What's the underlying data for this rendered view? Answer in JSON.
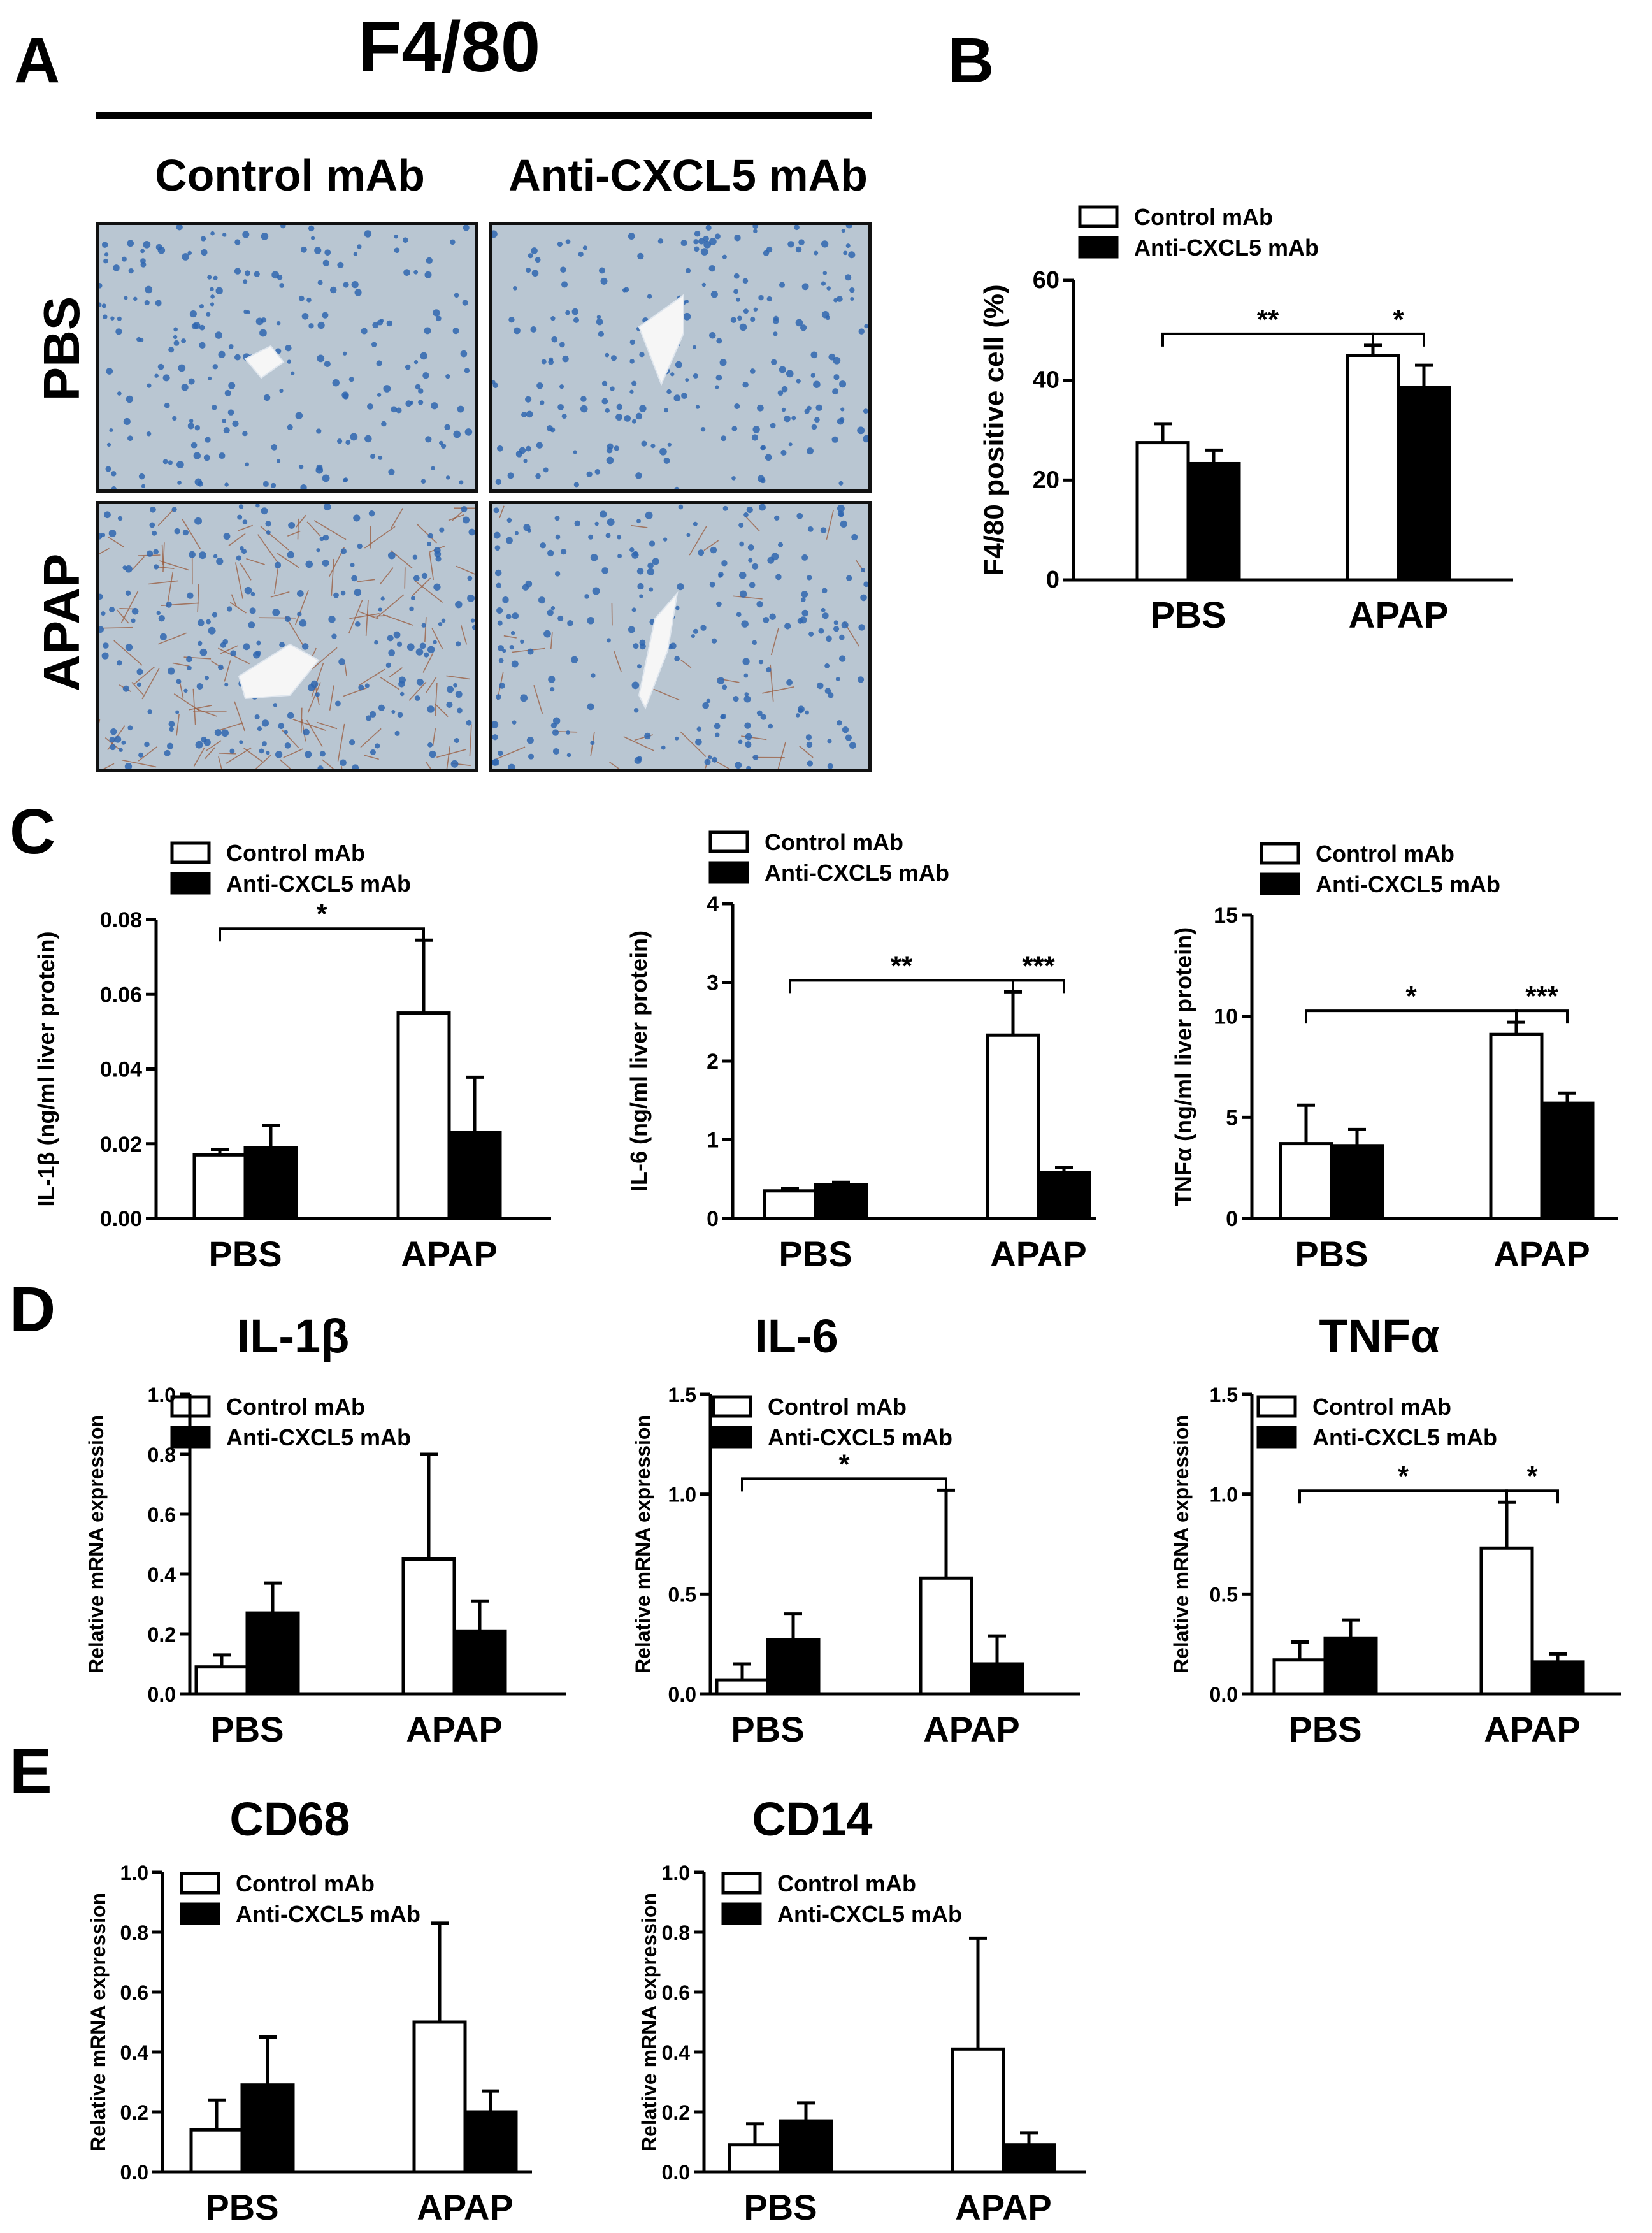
{
  "panel_a": {
    "letter": "A",
    "title": "F4/80",
    "columns": [
      "Control mAb",
      "Anti-CXCL5 mAb"
    ],
    "rows": [
      "PBS",
      "APAP"
    ],
    "images": [
      {
        "label": "micrograph-pbs-control",
        "brown_stain": "none"
      },
      {
        "label": "micrograph-pbs-anti",
        "brown_stain": "none"
      },
      {
        "label": "micrograph-apap-control",
        "brown_stain": "heavy"
      },
      {
        "label": "micrograph-apap-anti",
        "brown_stain": "light"
      }
    ],
    "colors": {
      "tissue": "#b9c6d2",
      "nuclei": "#2f66b0",
      "stain": "#9a5a3c",
      "vessel": "#f6f6f6"
    }
  },
  "panel_letters": {
    "b": "B",
    "c": "C",
    "d": "D",
    "e": "E"
  },
  "legend": {
    "control": "Control mAb",
    "anti": "Anti-CXCL5 mAb"
  },
  "colors": {
    "control_fill": "#ffffff",
    "anti_fill": "#000000",
    "axis": "#000000"
  },
  "chart_data": [
    {
      "id": "B",
      "type": "bar",
      "categories": [
        "PBS",
        "APAP"
      ],
      "ylabel": "F4/80 positive cell (%)",
      "ylim": [
        0,
        60
      ],
      "yticks": [
        "0",
        "20",
        "40",
        "60"
      ],
      "series": [
        {
          "name": "Control mAb",
          "values": [
            27.5,
            45.0
          ],
          "errors": [
            3.8,
            2.0
          ]
        },
        {
          "name": "Anti-CXCL5 mAb",
          "values": [
            23.3,
            38.5
          ],
          "errors": [
            2.7,
            4.5
          ]
        }
      ],
      "significance": [
        {
          "from": [
            0,
            0
          ],
          "to": [
            1,
            0
          ],
          "label": "**"
        },
        {
          "from": [
            1,
            0
          ],
          "to": [
            1,
            1
          ],
          "label": "*"
        }
      ]
    },
    {
      "id": "C1",
      "type": "bar",
      "categories": [
        "PBS",
        "APAP"
      ],
      "ylabel": "IL-1β (ng/ml liver protein)",
      "ylim": [
        0,
        0.08
      ],
      "yticks": [
        "0.00",
        "0.02",
        "0.04",
        "0.06",
        "0.08"
      ],
      "series": [
        {
          "name": "Control mAb",
          "values": [
            0.017,
            0.055
          ],
          "errors": [
            0.0015,
            0.0195
          ]
        },
        {
          "name": "Anti-CXCL5 mAb",
          "values": [
            0.019,
            0.023
          ],
          "errors": [
            0.006,
            0.0148
          ]
        }
      ],
      "significance": [
        {
          "from": [
            0,
            0
          ],
          "to": [
            1,
            0
          ],
          "label": "*"
        }
      ]
    },
    {
      "id": "C2",
      "type": "bar",
      "categories": [
        "PBS",
        "APAP"
      ],
      "ylabel": "IL-6 (ng/ml liver protein)",
      "ylim": [
        0,
        4
      ],
      "yticks": [
        "0",
        "1",
        "2",
        "3",
        "4"
      ],
      "series": [
        {
          "name": "Control mAb",
          "values": [
            0.35,
            2.33
          ],
          "errors": [
            0.03,
            0.55
          ]
        },
        {
          "name": "Anti-CXCL5 mAb",
          "values": [
            0.43,
            0.58
          ],
          "errors": [
            0.03,
            0.07
          ]
        }
      ],
      "significance": [
        {
          "from": [
            0,
            0
          ],
          "to": [
            1,
            0
          ],
          "label": "**"
        },
        {
          "from": [
            1,
            0
          ],
          "to": [
            1,
            1
          ],
          "label": "***"
        }
      ]
    },
    {
      "id": "C3",
      "type": "bar",
      "categories": [
        "PBS",
        "APAP"
      ],
      "ylabel": "TNFα (ng/ml liver protein)",
      "ylim": [
        0,
        15
      ],
      "yticks": [
        "0",
        "5",
        "10",
        "15"
      ],
      "series": [
        {
          "name": "Control mAb",
          "values": [
            3.7,
            9.1
          ],
          "errors": [
            1.9,
            0.6
          ]
        },
        {
          "name": "Anti-CXCL5 mAb",
          "values": [
            3.6,
            5.7
          ],
          "errors": [
            0.8,
            0.5
          ]
        }
      ],
      "significance": [
        {
          "from": [
            0,
            0
          ],
          "to": [
            1,
            0
          ],
          "label": "*"
        },
        {
          "from": [
            1,
            0
          ],
          "to": [
            1,
            1
          ],
          "label": "***"
        }
      ]
    },
    {
      "id": "D1",
      "type": "bar",
      "title": "IL-1β",
      "categories": [
        "PBS",
        "APAP"
      ],
      "ylabel": "Relative mRNA expression",
      "ylim": [
        0,
        1.0
      ],
      "yticks": [
        "0.0",
        "0.2",
        "0.4",
        "0.6",
        "0.8",
        "1.0"
      ],
      "series": [
        {
          "name": "Control mAb",
          "values": [
            0.09,
            0.45
          ],
          "errors": [
            0.04,
            0.35
          ]
        },
        {
          "name": "Anti-CXCL5 mAb",
          "values": [
            0.27,
            0.21
          ],
          "errors": [
            0.1,
            0.1
          ]
        }
      ],
      "significance": []
    },
    {
      "id": "D2",
      "type": "bar",
      "title": "IL-6",
      "categories": [
        "PBS",
        "APAP"
      ],
      "ylabel": "Relative mRNA expression",
      "ylim": [
        0,
        1.5
      ],
      "yticks": [
        "0.0",
        "0.5",
        "1.0",
        "1.5"
      ],
      "series": [
        {
          "name": "Control mAb",
          "values": [
            0.07,
            0.58
          ],
          "errors": [
            0.08,
            0.44
          ]
        },
        {
          "name": "Anti-CXCL5 mAb",
          "values": [
            0.27,
            0.15
          ],
          "errors": [
            0.13,
            0.14
          ]
        }
      ],
      "significance": [
        {
          "from": [
            0,
            0
          ],
          "to": [
            1,
            0
          ],
          "label": "*"
        }
      ]
    },
    {
      "id": "D3",
      "type": "bar",
      "title": "TNFα",
      "categories": [
        "PBS",
        "APAP"
      ],
      "ylabel": "Relative mRNA expression",
      "ylim": [
        0,
        1.5
      ],
      "yticks": [
        "0.0",
        "0.5",
        "1.0",
        "1.5"
      ],
      "series": [
        {
          "name": "Control mAb",
          "values": [
            0.17,
            0.73
          ],
          "errors": [
            0.09,
            0.23
          ]
        },
        {
          "name": "Anti-CXCL5 mAb",
          "values": [
            0.28,
            0.16
          ],
          "errors": [
            0.09,
            0.04
          ]
        }
      ],
      "significance": [
        {
          "from": [
            0,
            0
          ],
          "to": [
            1,
            0
          ],
          "label": "*"
        },
        {
          "from": [
            1,
            0
          ],
          "to": [
            1,
            1
          ],
          "label": "*"
        }
      ]
    },
    {
      "id": "E1",
      "type": "bar",
      "title": "CD68",
      "categories": [
        "PBS",
        "APAP"
      ],
      "ylabel": "Relative mRNA expression",
      "ylim": [
        0,
        1.0
      ],
      "yticks": [
        "0.0",
        "0.2",
        "0.4",
        "0.6",
        "0.8",
        "1.0"
      ],
      "series": [
        {
          "name": "Control mAb",
          "values": [
            0.14,
            0.5
          ],
          "errors": [
            0.1,
            0.33
          ]
        },
        {
          "name": "Anti-CXCL5 mAb",
          "values": [
            0.29,
            0.2
          ],
          "errors": [
            0.16,
            0.07
          ]
        }
      ],
      "significance": []
    },
    {
      "id": "E2",
      "type": "bar",
      "title": "CD14",
      "categories": [
        "PBS",
        "APAP"
      ],
      "ylabel": "Relative mRNA expression",
      "ylim": [
        0,
        1.0
      ],
      "yticks": [
        "0.0",
        "0.2",
        "0.4",
        "0.6",
        "0.8",
        "1.0"
      ],
      "series": [
        {
          "name": "Control mAb",
          "values": [
            0.09,
            0.41
          ],
          "errors": [
            0.07,
            0.37
          ]
        },
        {
          "name": "Anti-CXCL5 mAb",
          "values": [
            0.17,
            0.09
          ],
          "errors": [
            0.06,
            0.04
          ]
        }
      ],
      "significance": []
    }
  ]
}
